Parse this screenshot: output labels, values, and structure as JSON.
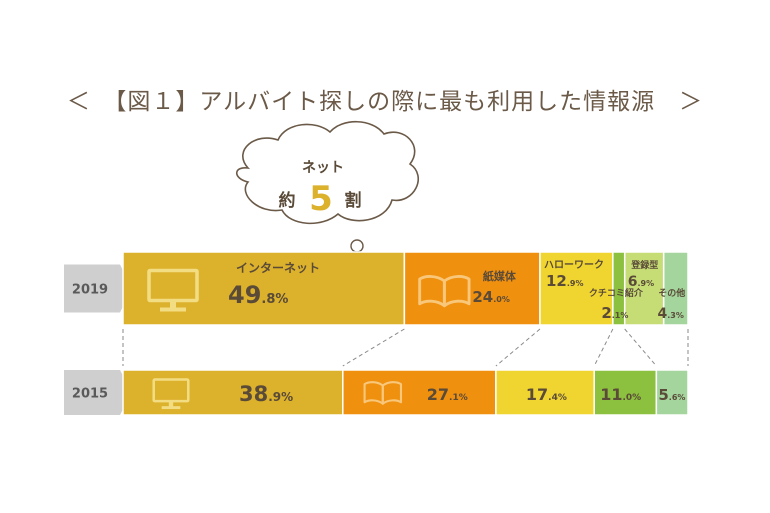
{
  "title": "＜　【図１】アルバイト探しの際に最も利用した情報源　＞",
  "callout": {
    "line1": "ネット",
    "prefix": "約",
    "number": "5",
    "suffix": "割"
  },
  "colors": {
    "internet": "#dcb12c",
    "paper": "#f0900f",
    "hellowork": "#f0d530",
    "kuchikomi": "#8cc13f",
    "touroku": "#c6dd76",
    "other": "#a3d59d",
    "year_tag": "#cfcfcf",
    "icon": "#f3dd83"
  },
  "chart_data": {
    "type": "bar",
    "orientation": "horizontal-stacked-100",
    "categories": [
      "2019",
      "2015"
    ],
    "series": [
      {
        "name": "インターネット",
        "values": [
          49.8,
          38.9
        ],
        "icon": "monitor-icon"
      },
      {
        "name": "紙媒体",
        "values": [
          24.0,
          27.1
        ],
        "icon": "book-icon"
      },
      {
        "name": "ハローワーク",
        "values": [
          12.9,
          17.4
        ]
      },
      {
        "name": "クチコミ紹介",
        "values": [
          2.1,
          11.0
        ]
      },
      {
        "name": "登録型",
        "values": [
          6.9,
          0
        ]
      },
      {
        "name": "その他",
        "values": [
          4.3,
          5.6
        ]
      }
    ]
  }
}
